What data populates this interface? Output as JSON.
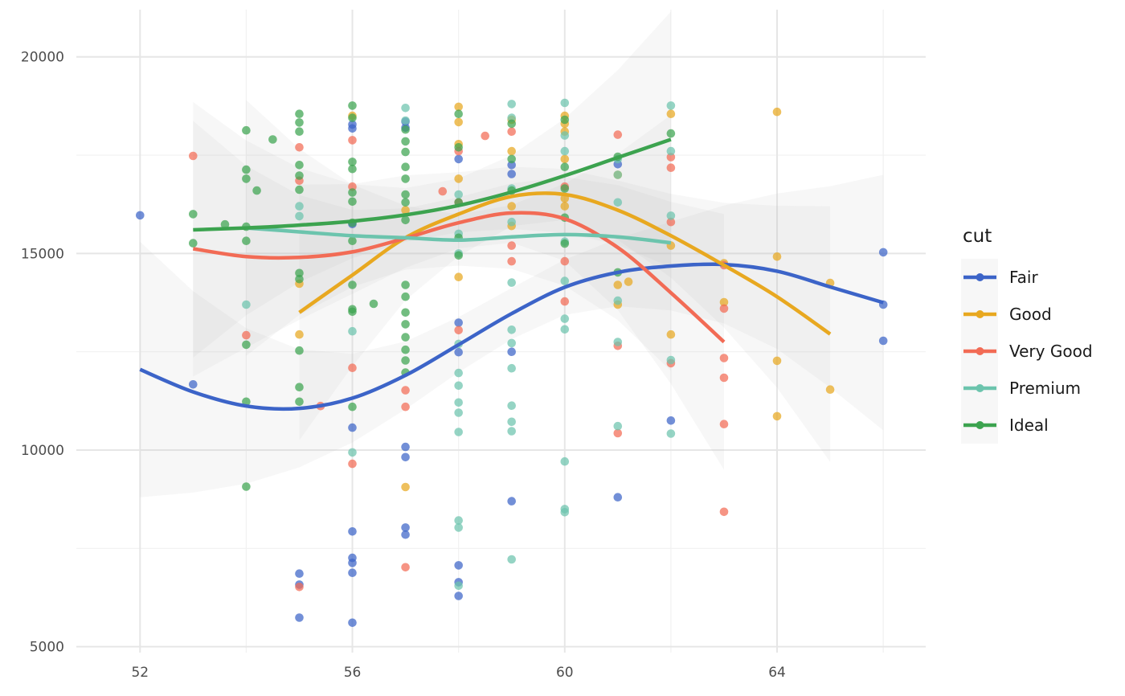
{
  "chart_data": {
    "type": "scatter",
    "title": "",
    "xlabel": "",
    "ylabel": "",
    "xlim": [
      50.8,
      66.8
    ],
    "ylim": [
      4850,
      21200
    ],
    "x_ticks": [
      52,
      56,
      60,
      64
    ],
    "y_ticks": [
      5000,
      10000,
      15000,
      20000
    ],
    "x_tick_labels": [
      "52",
      "56",
      "60",
      "64"
    ],
    "y_tick_labels": [
      "5000",
      "10000",
      "15000",
      "20000"
    ],
    "grid": true,
    "legend": {
      "title": "cut",
      "position": "right"
    },
    "series": [
      {
        "name": "Fair",
        "color": "#3c64c8",
        "points": [
          [
            52,
            15970
          ],
          [
            53,
            11670
          ],
          [
            55,
            6860
          ],
          [
            55,
            6580
          ],
          [
            55,
            5740
          ],
          [
            56,
            18180
          ],
          [
            56,
            18280
          ],
          [
            56,
            15750
          ],
          [
            56,
            10570
          ],
          [
            56,
            7930
          ],
          [
            56,
            7260
          ],
          [
            56,
            7130
          ],
          [
            56,
            6880
          ],
          [
            56,
            5610
          ],
          [
            57,
            18200
          ],
          [
            57,
            18350
          ],
          [
            57,
            10080
          ],
          [
            57,
            9820
          ],
          [
            57,
            8030
          ],
          [
            57,
            7850
          ],
          [
            58,
            17400
          ],
          [
            58,
            12490
          ],
          [
            58,
            13240
          ],
          [
            58,
            7070
          ],
          [
            58,
            6640
          ],
          [
            58,
            6290
          ],
          [
            59,
            17020
          ],
          [
            59,
            17250
          ],
          [
            59,
            12500
          ],
          [
            59,
            8700
          ],
          [
            61,
            17270
          ],
          [
            61,
            8800
          ],
          [
            62,
            10750
          ],
          [
            66,
            15030
          ],
          [
            66,
            13700
          ],
          [
            66,
            12780
          ]
        ],
        "smooth": [
          [
            52,
            12050
          ],
          [
            53,
            11480
          ],
          [
            54,
            11120
          ],
          [
            55,
            11060
          ],
          [
            56,
            11320
          ],
          [
            57,
            11900
          ],
          [
            58,
            12680
          ],
          [
            59,
            13470
          ],
          [
            60,
            14140
          ],
          [
            61,
            14520
          ],
          [
            62,
            14680
          ],
          [
            63,
            14720
          ],
          [
            64,
            14550
          ],
          [
            65,
            14150
          ],
          [
            66,
            13750
          ]
        ]
      },
      {
        "name": "Good",
        "color": "#e8a820",
        "points": [
          [
            55,
            14230
          ],
          [
            55,
            12940
          ],
          [
            56,
            18500
          ],
          [
            57,
            16100
          ],
          [
            57,
            9060
          ],
          [
            58,
            18730
          ],
          [
            58,
            18340
          ],
          [
            58,
            17780
          ],
          [
            58,
            16900
          ],
          [
            58,
            14400
          ],
          [
            59,
            18400
          ],
          [
            59,
            17600
          ],
          [
            59,
            16200
          ],
          [
            59,
            15700
          ],
          [
            60,
            18500
          ],
          [
            60,
            18300
          ],
          [
            60,
            18100
          ],
          [
            60,
            17400
          ],
          [
            60,
            16400
          ],
          [
            60,
            16200
          ],
          [
            61,
            17000
          ],
          [
            61,
            14200
          ],
          [
            61,
            13700
          ],
          [
            61.2,
            14280
          ],
          [
            62,
            18550
          ],
          [
            62,
            15200
          ],
          [
            62,
            12940
          ],
          [
            63,
            14750
          ],
          [
            63,
            13760
          ],
          [
            64,
            18600
          ],
          [
            64,
            14920
          ],
          [
            64,
            12270
          ],
          [
            64,
            10860
          ],
          [
            65,
            14250
          ],
          [
            65,
            11540
          ]
        ],
        "smooth": [
          [
            55,
            13500
          ],
          [
            56,
            14450
          ],
          [
            57,
            15400
          ],
          [
            58,
            16000
          ],
          [
            59,
            16450
          ],
          [
            60,
            16500
          ],
          [
            61,
            16100
          ],
          [
            62,
            15450
          ],
          [
            63,
            14700
          ],
          [
            64,
            13900
          ],
          [
            65,
            12950
          ]
        ]
      },
      {
        "name": "Very Good",
        "color": "#f26b55",
        "points": [
          [
            53,
            17480
          ],
          [
            54,
            12920
          ],
          [
            55,
            17700
          ],
          [
            55,
            16850
          ],
          [
            55,
            6520
          ],
          [
            55.4,
            11120
          ],
          [
            56,
            17880
          ],
          [
            56,
            16700
          ],
          [
            56,
            12090
          ],
          [
            56,
            9650
          ],
          [
            57,
            11520
          ],
          [
            57,
            11100
          ],
          [
            57,
            7020
          ],
          [
            57.7,
            16580
          ],
          [
            58,
            17600
          ],
          [
            58,
            16300
          ],
          [
            58,
            13050
          ],
          [
            58.5,
            17990
          ],
          [
            59,
            18100
          ],
          [
            59,
            15200
          ],
          [
            59,
            14800
          ],
          [
            60,
            16700
          ],
          [
            60,
            14800
          ],
          [
            60,
            13780
          ],
          [
            61,
            18020
          ],
          [
            61,
            12650
          ],
          [
            61,
            10430
          ],
          [
            62,
            17450
          ],
          [
            62,
            17180
          ],
          [
            62,
            15800
          ],
          [
            62,
            12210
          ],
          [
            63,
            14700
          ],
          [
            63,
            13600
          ],
          [
            63,
            12340
          ],
          [
            63,
            11840
          ],
          [
            63,
            10660
          ],
          [
            63,
            8430
          ]
        ],
        "smooth": [
          [
            53,
            15120
          ],
          [
            54,
            14920
          ],
          [
            55,
            14900
          ],
          [
            56,
            15040
          ],
          [
            57,
            15390
          ],
          [
            58,
            15780
          ],
          [
            59,
            16030
          ],
          [
            60,
            15880
          ],
          [
            61,
            15150
          ],
          [
            62,
            14000
          ],
          [
            63,
            12750
          ]
        ]
      },
      {
        "name": "Premium",
        "color": "#6cc4ad",
        "points": [
          [
            54,
            13700
          ],
          [
            55,
            16200
          ],
          [
            55,
            15950
          ],
          [
            56,
            13020
          ],
          [
            56,
            9940
          ],
          [
            57,
            18700
          ],
          [
            57,
            18380
          ],
          [
            58,
            16500
          ],
          [
            58,
            15500
          ],
          [
            58,
            15000
          ],
          [
            58,
            12700
          ],
          [
            58,
            11960
          ],
          [
            58,
            11640
          ],
          [
            58,
            11210
          ],
          [
            58,
            10950
          ],
          [
            58,
            10460
          ],
          [
            58,
            8210
          ],
          [
            58,
            8030
          ],
          [
            58,
            6550
          ],
          [
            59,
            18800
          ],
          [
            59,
            18450
          ],
          [
            59,
            16650
          ],
          [
            59,
            15800
          ],
          [
            59,
            14260
          ],
          [
            59,
            13060
          ],
          [
            59,
            12720
          ],
          [
            59,
            12080
          ],
          [
            59,
            11130
          ],
          [
            59,
            10720
          ],
          [
            59,
            10480
          ],
          [
            59,
            7220
          ],
          [
            60,
            18830
          ],
          [
            60,
            18000
          ],
          [
            60,
            17600
          ],
          [
            60,
            15300
          ],
          [
            60,
            14300
          ],
          [
            60,
            13340
          ],
          [
            60,
            13070
          ],
          [
            60,
            9710
          ],
          [
            60,
            8500
          ],
          [
            60,
            8420
          ],
          [
            61,
            17400
          ],
          [
            61,
            17000
          ],
          [
            61,
            16300
          ],
          [
            61,
            13800
          ],
          [
            61,
            12750
          ],
          [
            61,
            10610
          ],
          [
            62,
            18760
          ],
          [
            62,
            17600
          ],
          [
            62,
            15960
          ],
          [
            62,
            12290
          ],
          [
            62,
            10420
          ]
        ],
        "smooth": [
          [
            54,
            15650
          ],
          [
            55,
            15550
          ],
          [
            56,
            15450
          ],
          [
            57,
            15400
          ],
          [
            58,
            15340
          ],
          [
            59,
            15420
          ],
          [
            60,
            15480
          ],
          [
            61,
            15420
          ],
          [
            62,
            15270
          ]
        ]
      },
      {
        "name": "Ideal",
        "color": "#3ca34f",
        "points": [
          [
            53,
            16000
          ],
          [
            53,
            15260
          ],
          [
            53.6,
            15740
          ],
          [
            54,
            18130
          ],
          [
            54,
            17130
          ],
          [
            54,
            16900
          ],
          [
            54,
            15680
          ],
          [
            54,
            15320
          ],
          [
            54,
            12680
          ],
          [
            54,
            11230
          ],
          [
            54,
            9070
          ],
          [
            54.2,
            16600
          ],
          [
            54.5,
            17900
          ],
          [
            55,
            18550
          ],
          [
            55,
            18330
          ],
          [
            55,
            18100
          ],
          [
            55,
            17250
          ],
          [
            55,
            16980
          ],
          [
            55,
            16620
          ],
          [
            55,
            14500
          ],
          [
            55,
            14350
          ],
          [
            55,
            12530
          ],
          [
            55,
            11600
          ],
          [
            55,
            11230
          ],
          [
            56,
            18760
          ],
          [
            56,
            18450
          ],
          [
            56,
            17330
          ],
          [
            56,
            17150
          ],
          [
            56,
            16550
          ],
          [
            56,
            16320
          ],
          [
            56,
            15780
          ],
          [
            56,
            15320
          ],
          [
            56,
            14200
          ],
          [
            56,
            13580
          ],
          [
            56,
            13520
          ],
          [
            56,
            11100
          ],
          [
            56.4,
            13720
          ],
          [
            57,
            18150
          ],
          [
            57,
            17850
          ],
          [
            57,
            17580
          ],
          [
            57,
            17200
          ],
          [
            57,
            16900
          ],
          [
            57,
            16500
          ],
          [
            57,
            16300
          ],
          [
            57,
            15850
          ],
          [
            57,
            14200
          ],
          [
            57,
            13900
          ],
          [
            57,
            13500
          ],
          [
            57,
            13200
          ],
          [
            57,
            12870
          ],
          [
            57,
            12550
          ],
          [
            57,
            12280
          ],
          [
            57,
            11970
          ],
          [
            58,
            18550
          ],
          [
            58,
            17700
          ],
          [
            58,
            16300
          ],
          [
            58,
            15400
          ],
          [
            58,
            14950
          ],
          [
            59,
            18300
          ],
          [
            59,
            17400
          ],
          [
            59,
            16600
          ],
          [
            60,
            18400
          ],
          [
            60,
            17200
          ],
          [
            60,
            16650
          ],
          [
            60,
            15910
          ],
          [
            60,
            15250
          ],
          [
            61,
            17460
          ],
          [
            61,
            14520
          ],
          [
            62,
            18050
          ]
        ],
        "smooth": [
          [
            53,
            15600
          ],
          [
            54,
            15650
          ],
          [
            55,
            15720
          ],
          [
            56,
            15820
          ],
          [
            57,
            15980
          ],
          [
            58,
            16220
          ],
          [
            59,
            16560
          ],
          [
            60,
            16980
          ],
          [
            61,
            17440
          ],
          [
            62,
            17900
          ]
        ]
      }
    ]
  }
}
